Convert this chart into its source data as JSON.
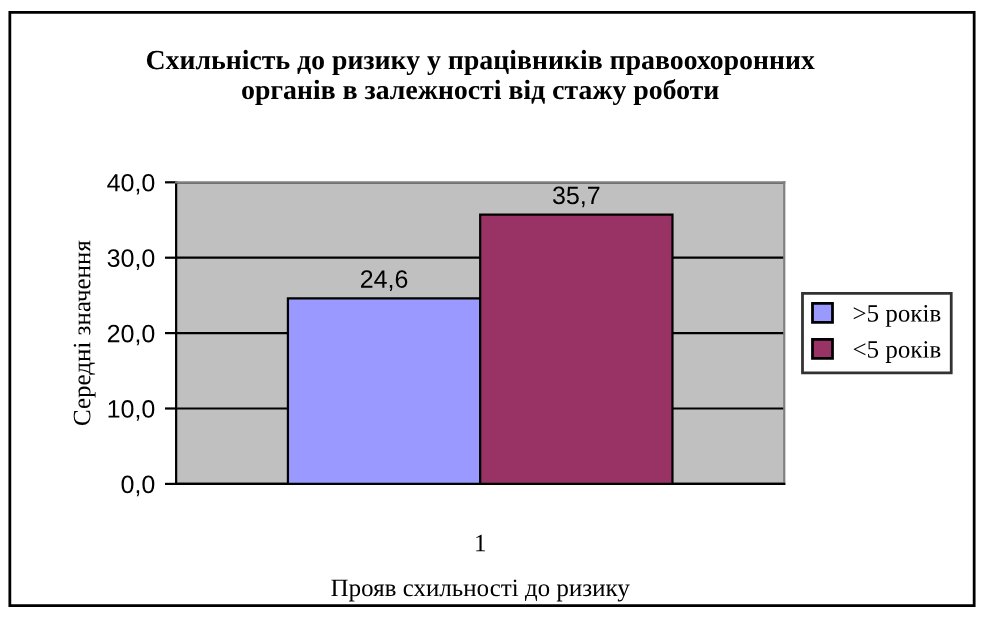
{
  "chart_data": {
    "type": "bar",
    "title": "Схильність до ризику у працівників правоохоронних\nорганів в залежності від стажу роботи",
    "xlabel": "Прояв схильності до ризику",
    "ylabel": "Середні значення",
    "categories": [
      "1"
    ],
    "series": [
      {
        "name": ">5 років",
        "color": "#9999ff",
        "values": [
          24.6
        ],
        "value_labels": [
          "24,6"
        ]
      },
      {
        "name": "<5 років",
        "color": "#993366",
        "values": [
          35.7
        ],
        "value_labels": [
          "35,7"
        ]
      }
    ],
    "ylim": [
      0,
      40
    ],
    "yticks": [
      {
        "value": 0,
        "label": "0,0"
      },
      {
        "value": 10,
        "label": "10,0"
      },
      {
        "value": 20,
        "label": "20,0"
      },
      {
        "value": 30,
        "label": "30,0"
      },
      {
        "value": 40,
        "label": "40,0"
      }
    ],
    "grid": "y",
    "legend": "right"
  }
}
